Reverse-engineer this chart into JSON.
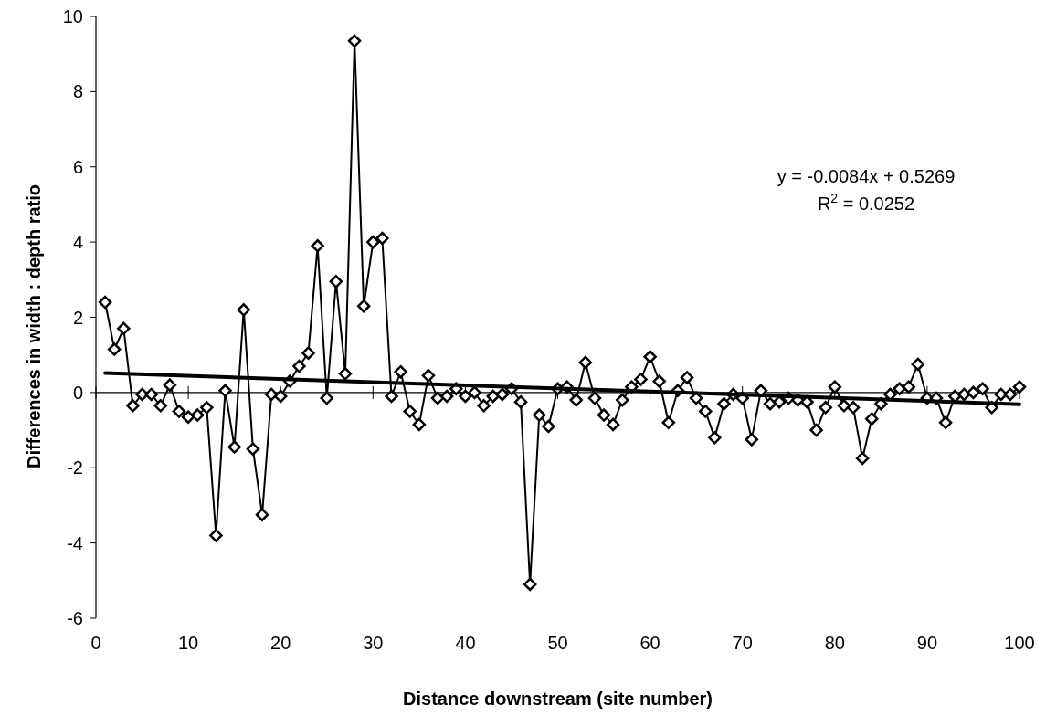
{
  "chart_data": {
    "type": "line",
    "xlabel": "Distance downstream (site number)",
    "ylabel": "Differences in width : depth ratio",
    "xlim": [
      0,
      100
    ],
    "xticks": [
      0,
      10,
      20,
      30,
      40,
      50,
      60,
      70,
      80,
      90,
      100
    ],
    "ylim": [
      -6,
      10
    ],
    "yticks": [
      -6,
      -4,
      -2,
      0,
      2,
      4,
      6,
      8,
      10
    ],
    "marker": "diamond",
    "annotations": [
      "y = -0.0084x + 0.5269",
      "R$^{2}$ = 0.0252"
    ],
    "series": [
      {
        "color": "#000000",
        "x": [
          1,
          2,
          3,
          4,
          5,
          6,
          7,
          8,
          9,
          10,
          11,
          12,
          13,
          14,
          15,
          16,
          17,
          18,
          19,
          20,
          21,
          22,
          23,
          24,
          25,
          26,
          27,
          28,
          29,
          30,
          31,
          32,
          33,
          34,
          35,
          36,
          37,
          38,
          39,
          40,
          41,
          42,
          43,
          44,
          45,
          46,
          47,
          48,
          49,
          50,
          51,
          52,
          53,
          54,
          55,
          56,
          57,
          58,
          59,
          60,
          61,
          62,
          63,
          64,
          65,
          66,
          67,
          68,
          69,
          70,
          71,
          72,
          73,
          74,
          75,
          76,
          77,
          78,
          79,
          80,
          81,
          82,
          83,
          84,
          85,
          86,
          87,
          88,
          89,
          90,
          91,
          92,
          93,
          94,
          95,
          96,
          97,
          98,
          99,
          100
        ],
        "values": [
          2.4,
          1.15,
          1.7,
          -0.35,
          -0.05,
          -0.05,
          -0.35,
          0.2,
          -0.5,
          -0.65,
          -0.6,
          -0.4,
          -3.8,
          0.05,
          -1.45,
          2.2,
          -1.5,
          -3.25,
          -0.05,
          -0.1,
          0.3,
          0.7,
          1.05,
          3.9,
          -0.15,
          2.95,
          0.5,
          9.35,
          2.3,
          4.0,
          4.1,
          -0.1,
          0.55,
          -0.5,
          -0.85,
          0.45,
          -0.15,
          -0.1,
          0.1,
          -0.1,
          0.0,
          -0.35,
          -0.1,
          -0.05,
          0.1,
          -0.25,
          -5.1,
          -0.6,
          -0.9,
          0.1,
          0.15,
          -0.2,
          0.8,
          -0.15,
          -0.6,
          -0.85,
          -0.2,
          0.15,
          0.35,
          0.95,
          0.3,
          -0.8,
          0.05,
          0.4,
          -0.15,
          -0.5,
          -1.2,
          -0.3,
          -0.05,
          -0.15,
          -1.25,
          0.05,
          -0.3,
          -0.25,
          -0.15,
          -0.2,
          -0.25,
          -1.0,
          -0.4,
          0.15,
          -0.35,
          -0.4,
          -1.75,
          -0.7,
          -0.3,
          -0.05,
          0.1,
          0.15,
          0.75,
          -0.15,
          -0.15,
          -0.8,
          -0.1,
          -0.05,
          0.0,
          0.1,
          -0.4,
          -0.05,
          -0.05,
          0.15
        ]
      },
      {
        "type": "line",
        "color": "#000000",
        "marker": "none",
        "x": [
          1,
          100
        ],
        "values": [
          0.52,
          -0.31
        ]
      }
    ]
  }
}
